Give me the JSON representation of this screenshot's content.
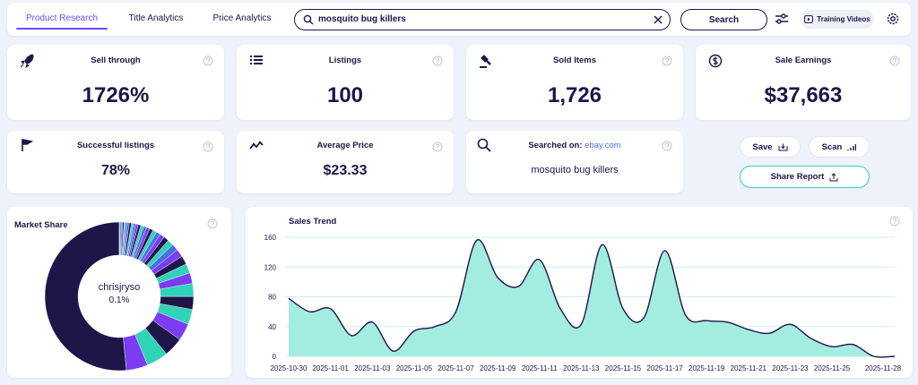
{
  "nav": {
    "tabs": [
      "Product Research",
      "Title Analytics",
      "Price Analytics"
    ],
    "active_tab": 0
  },
  "search": {
    "query": "mosquito bug killers",
    "button": "Search"
  },
  "training_videos": "Training Videos",
  "cards": [
    {
      "label": "Sell through",
      "value": "1726%"
    },
    {
      "label": "Listings",
      "value": "100"
    },
    {
      "label": "Sold Items",
      "value": "1,726"
    },
    {
      "label": "Sale Earnings",
      "value": "$37,663"
    },
    {
      "label": "Successful listings",
      "value": "78%"
    },
    {
      "label": "Average Price",
      "value": "$23.33"
    }
  ],
  "searched_on": {
    "label": "Searched on:",
    "site": "ebay.com",
    "query": "mosquito bug killers"
  },
  "actions": {
    "save": "Save",
    "scan": "Scan",
    "share": "Share Report"
  },
  "chart_data": [
    {
      "type": "pie",
      "title": "Market Share",
      "center_label": "chrisjryso",
      "center_value_label": "0.1%",
      "values": [
        55,
        5,
        5,
        4.5,
        4,
        3.5,
        3,
        3,
        2.5,
        2.2,
        2,
        1.8,
        1.6,
        1.4,
        1.2,
        1.1,
        1,
        0.9,
        0.8,
        0.8,
        0.7,
        0.7,
        0.6,
        0.6,
        0.5,
        0.5,
        0.5,
        0.4,
        0.4,
        0.4,
        0.3,
        0.3,
        0.3,
        0.2
      ],
      "colors": [
        "#1e1548",
        "#7b3cf5",
        "#2fd3b8",
        "#1e1548",
        "#7b3cf5",
        "#2fd3b8",
        "#1e1548",
        "#2fd3b8",
        "#7b3cf5",
        "#2fd3b8",
        "#1e1548",
        "#7b3cf5",
        "#4a6fe3",
        "#2fd3b8",
        "#1e1548",
        "#7b3cf5",
        "#4a6fe3",
        "#2fd3b8",
        "#1e1548",
        "#7b3cf5",
        "#4a6fe3",
        "#2fd3b8",
        "#1e1548",
        "#7b3cf5",
        "#4a6fe3",
        "#2fd3b8",
        "#1e1548",
        "#7b3cf5",
        "#4a6fe3",
        "#2fd3b8",
        "#1e1548",
        "#7b3cf5",
        "#4a6fe3",
        "#2fd3b8"
      ]
    },
    {
      "type": "area",
      "title": "Sales Trend",
      "categories": [
        "2025-10-30",
        null,
        "2025-11-01",
        null,
        "2025-11-03",
        null,
        "2025-11-05",
        null,
        "2025-11-07",
        null,
        "2025-11-09",
        null,
        "2025-11-11",
        null,
        "2025-11-13",
        null,
        "2025-11-15",
        null,
        "2025-11-17",
        null,
        "2025-11-19",
        null,
        "2025-11-21",
        null,
        "2025-11-23",
        null,
        "2025-11-25",
        null,
        null,
        "2025-11-28"
      ],
      "values": [
        78,
        60,
        64,
        28,
        46,
        7,
        34,
        40,
        60,
        156,
        106,
        94,
        130,
        64,
        43,
        150,
        64,
        52,
        142,
        55,
        48,
        46,
        36,
        31,
        43,
        24,
        13,
        16,
        0,
        0
      ],
      "color": "#a3ece0",
      "line_color": "#1e1548",
      "ylim": [
        0,
        160
      ],
      "yticks": [
        0,
        40,
        80,
        120,
        160
      ],
      "grid": true
    }
  ]
}
